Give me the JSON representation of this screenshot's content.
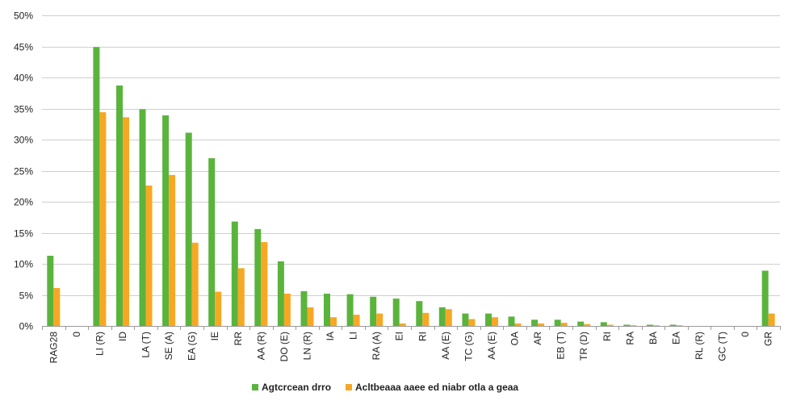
{
  "chart_data": {
    "type": "bar",
    "categories": [
      "RAG28",
      "0",
      "LI (R)",
      "ID",
      "LA (T)",
      "SE (A)",
      "EA (G)",
      "IE",
      "RR",
      "AA (R)",
      "DO (E)",
      "LN (R)",
      "IA",
      "LI",
      "RA (A)",
      "EI",
      "RI",
      "AA (E)",
      "TC (G)",
      "AA (E)",
      "OA",
      "AR",
      "EB (T)",
      "TR (D)",
      "RI",
      "RA",
      "BA",
      "EA",
      "RL (R)",
      "GC (T)",
      "0",
      "GR"
    ],
    "series": [
      {
        "name": "Agtcrcean drro",
        "color": "#5ab43c",
        "values": [
          11.3,
          0,
          44.9,
          38.7,
          34.9,
          33.9,
          31.1,
          27.0,
          16.8,
          15.6,
          10.4,
          5.6,
          5.2,
          5.1,
          4.7,
          4.4,
          4.0,
          3.0,
          2.0,
          2.0,
          1.5,
          1.0,
          1.0,
          0.7,
          0.6,
          0.2,
          0.2,
          0.2,
          0,
          0,
          0,
          8.9
        ]
      },
      {
        "name": "Acltbeaaa aaee ed niabr otla a geaa",
        "color": "#f7a823",
        "values": [
          6.1,
          0,
          34.4,
          33.6,
          22.6,
          24.3,
          13.4,
          5.5,
          9.3,
          13.5,
          5.2,
          3.0,
          1.4,
          1.8,
          2.0,
          0.4,
          2.1,
          2.7,
          1.1,
          1.4,
          0.4,
          0.4,
          0.5,
          0.3,
          0.2,
          0.1,
          0.1,
          0.1,
          0,
          0,
          0,
          2.0
        ]
      }
    ],
    "y_ticks": [
      "0%",
      "5%",
      "10%",
      "15%",
      "20%",
      "25%",
      "30%",
      "35%",
      "40%",
      "45%",
      "50%"
    ],
    "ylim": [
      0,
      50
    ],
    "grid": true,
    "legend_position": "bottom"
  }
}
